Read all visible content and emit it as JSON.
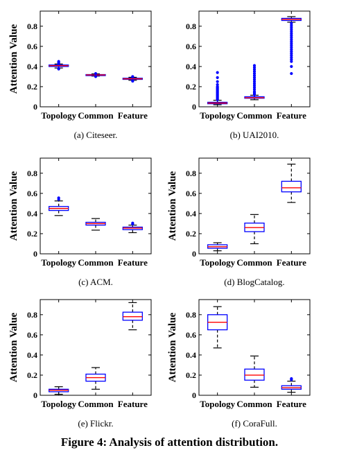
{
  "figure_caption": "Figure 4: Analysis of attention distribution.",
  "colors": {
    "box": "#0000ff",
    "median": "#ff0000",
    "whisker": "#000000",
    "outlier": "#0000ff"
  },
  "chart_data": [
    {
      "type": "box",
      "caption": "(a)  Citeseer.",
      "ylabel": "Attention Value",
      "categories": [
        "Topology",
        "Common",
        "Feature"
      ],
      "ylim": [
        0,
        0.95
      ],
      "yticks": [
        "0",
        "0.2",
        "0.4",
        "0.6",
        "0.8"
      ],
      "boxes": [
        {
          "whislo": 0.385,
          "q1": 0.4,
          "med": 0.408,
          "q3": 0.415,
          "whishi": 0.425,
          "outliers": [
            0.375,
            0.38,
            0.43,
            0.44,
            0.45
          ]
        },
        {
          "whislo": 0.305,
          "q1": 0.312,
          "med": 0.316,
          "q3": 0.32,
          "whishi": 0.327,
          "outliers": [
            0.3,
            0.33
          ]
        },
        {
          "whislo": 0.263,
          "q1": 0.272,
          "med": 0.278,
          "q3": 0.284,
          "whishi": 0.293,
          "outliers": [
            0.255,
            0.26,
            0.3
          ]
        }
      ]
    },
    {
      "type": "box",
      "caption": "(b)  UAI2010.",
      "ylabel": "",
      "categories": [
        "Topology",
        "Common",
        "Feature"
      ],
      "ylim": [
        0,
        0.95
      ],
      "yticks": [
        "0",
        "0.2",
        "0.4",
        "0.6",
        "0.8"
      ],
      "boxes": [
        {
          "whislo": 0.02,
          "q1": 0.03,
          "med": 0.037,
          "q3": 0.045,
          "whishi": 0.065,
          "outliers": [
            0.07,
            0.08,
            0.09,
            0.1,
            0.11,
            0.12,
            0.13,
            0.14,
            0.15,
            0.16,
            0.17,
            0.18,
            0.19,
            0.2,
            0.22,
            0.25,
            0.29,
            0.34
          ]
        },
        {
          "whislo": 0.07,
          "q1": 0.085,
          "med": 0.09,
          "q3": 0.1,
          "whishi": 0.115,
          "outliers": [
            0.12,
            0.13,
            0.14,
            0.15,
            0.17,
            0.19,
            0.21,
            0.23,
            0.25,
            0.27,
            0.29,
            0.31,
            0.33,
            0.35,
            0.37,
            0.39,
            0.41
          ]
        },
        {
          "whislo": 0.84,
          "q1": 0.857,
          "med": 0.868,
          "q3": 0.878,
          "whishi": 0.895,
          "outliers": [
            0.33,
            0.4,
            0.45,
            0.47,
            0.49,
            0.51,
            0.53,
            0.55,
            0.57,
            0.59,
            0.61,
            0.63,
            0.65,
            0.67,
            0.69,
            0.71,
            0.73,
            0.75,
            0.77,
            0.79,
            0.81,
            0.83
          ]
        }
      ]
    },
    {
      "type": "box",
      "caption": "(c)  ACM.",
      "ylabel": "Attention Value",
      "categories": [
        "Topology",
        "Common",
        "Feature"
      ],
      "ylim": [
        0,
        0.95
      ],
      "yticks": [
        "0",
        "0.2",
        "0.4",
        "0.6",
        "0.8"
      ],
      "boxes": [
        {
          "whislo": 0.38,
          "q1": 0.43,
          "med": 0.45,
          "q3": 0.47,
          "whishi": 0.525,
          "outliers": [
            0.54,
            0.555
          ]
        },
        {
          "whislo": 0.235,
          "q1": 0.285,
          "med": 0.3,
          "q3": 0.313,
          "whishi": 0.35,
          "outliers": []
        },
        {
          "whislo": 0.21,
          "q1": 0.24,
          "med": 0.255,
          "q3": 0.265,
          "whishi": 0.285,
          "outliers": [
            0.295,
            0.305
          ]
        }
      ]
    },
    {
      "type": "box",
      "caption": "(d)  BlogCatalog.",
      "ylabel": "Attention Value",
      "categories": [
        "Topology",
        "Common",
        "Feature"
      ],
      "ylim": [
        0,
        0.95
      ],
      "yticks": [
        "0",
        "0.2",
        "0.4",
        "0.6",
        "0.8"
      ],
      "boxes": [
        {
          "whislo": 0.03,
          "q1": 0.055,
          "med": 0.07,
          "q3": 0.09,
          "whishi": 0.11,
          "outliers": []
        },
        {
          "whislo": 0.1,
          "q1": 0.22,
          "med": 0.26,
          "q3": 0.305,
          "whishi": 0.39,
          "outliers": []
        },
        {
          "whislo": 0.51,
          "q1": 0.615,
          "med": 0.655,
          "q3": 0.72,
          "whishi": 0.89,
          "outliers": []
        }
      ]
    },
    {
      "type": "box",
      "caption": "(e)  Flickr.",
      "ylabel": "Attention Value",
      "categories": [
        "Topology",
        "Common",
        "Feature"
      ],
      "ylim": [
        0,
        0.95
      ],
      "yticks": [
        "0",
        "0.2",
        "0.4",
        "0.6",
        "0.8"
      ],
      "boxes": [
        {
          "whislo": 0.01,
          "q1": 0.035,
          "med": 0.05,
          "q3": 0.06,
          "whishi": 0.085,
          "outliers": []
        },
        {
          "whislo": 0.06,
          "q1": 0.14,
          "med": 0.175,
          "q3": 0.21,
          "whishi": 0.275,
          "outliers": []
        },
        {
          "whislo": 0.65,
          "q1": 0.745,
          "med": 0.78,
          "q3": 0.825,
          "whishi": 0.92,
          "outliers": []
        }
      ]
    },
    {
      "type": "box",
      "caption": "(f)  CoraFull.",
      "ylabel": "Attention Value",
      "categories": [
        "Topology",
        "Common",
        "Feature"
      ],
      "ylim": [
        0,
        0.95
      ],
      "yticks": [
        "0",
        "0.2",
        "0.4",
        "0.6",
        "0.8"
      ],
      "boxes": [
        {
          "whislo": 0.47,
          "q1": 0.65,
          "med": 0.725,
          "q3": 0.8,
          "whishi": 0.88,
          "outliers": []
        },
        {
          "whislo": 0.08,
          "q1": 0.15,
          "med": 0.2,
          "q3": 0.26,
          "whishi": 0.39,
          "outliers": []
        },
        {
          "whislo": 0.03,
          "q1": 0.06,
          "med": 0.075,
          "q3": 0.095,
          "whishi": 0.14,
          "outliers": [
            0.155,
            0.165
          ]
        }
      ]
    }
  ]
}
